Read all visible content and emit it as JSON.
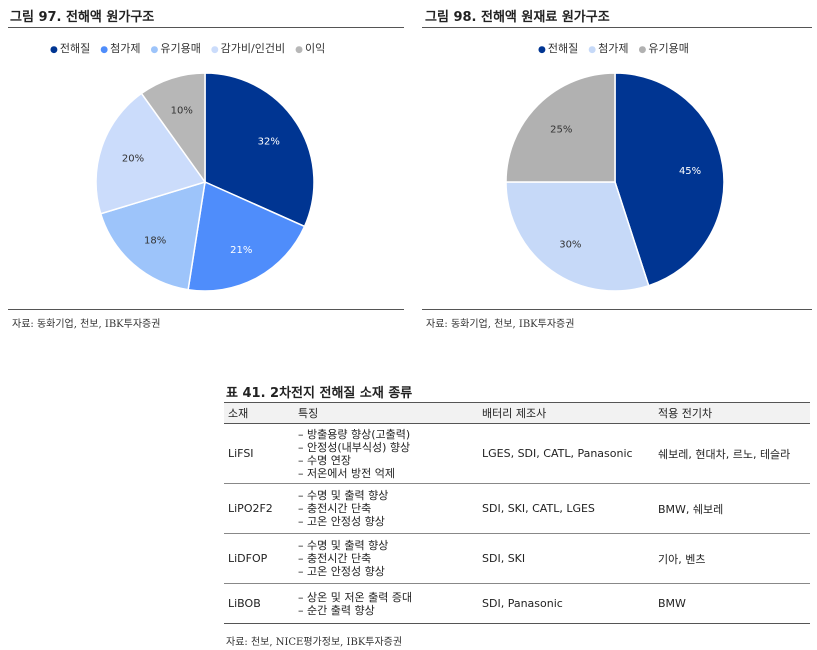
{
  "chart_data": [
    {
      "type": "pie",
      "title": "그림 97. 전해액 원가구조",
      "categories": [
        "전해질",
        "첨가제",
        "유기용매",
        "감가비/인건비",
        "이익"
      ],
      "values": [
        32,
        21,
        18,
        20,
        10
      ],
      "value_labels": [
        "32%",
        "21%",
        "18%",
        "20%",
        "10%"
      ],
      "colors": [
        "#003592",
        "#4f8dfb",
        "#9dc4fa",
        "#cbdcfb",
        "#b7b7b7"
      ],
      "legend_position": "top",
      "source": "자료: 동화기업, 천보, IBK투자증권"
    },
    {
      "type": "pie",
      "title": "그림 98. 전해액 원재료 원가구조",
      "categories": [
        "전해질",
        "첨가제",
        "유기용매"
      ],
      "values": [
        45,
        30,
        25
      ],
      "value_labels": [
        "45%",
        "30%",
        "25%"
      ],
      "colors": [
        "#003592",
        "#c6d9f8",
        "#b1b1b1"
      ],
      "legend_position": "top",
      "source": "자료: 동화기업, 천보, IBK투자증권"
    }
  ],
  "table": {
    "title": "표 41. 2차전지 전해질 소재 종류",
    "headers": [
      "소재",
      "특징",
      "배터리 제조사",
      "적용 전기차"
    ],
    "rows": [
      {
        "material": "LiFSI",
        "features": [
          "방출용량 향상(고출력)",
          "안정성(내부식성) 향상",
          "수명 연장",
          "저온에서 방전 억제"
        ],
        "makers": "LGES, SDI, CATL, Panasonic",
        "ev": "쉐보레, 현대차, 르노, 테슬라"
      },
      {
        "material": "LiPO2F2",
        "features": [
          "수명 및 출력 향상",
          "충전시간 단축",
          "고온 안정성 향상"
        ],
        "makers": "SDI, SKI, CATL, LGES",
        "ev": "BMW, 쉐보레"
      },
      {
        "material": "LiDFOP",
        "features": [
          "수명 및 출력 향상",
          "충전시간 단축",
          "고온 안정성 향상"
        ],
        "makers": "SDI, SKI",
        "ev": "기아, 벤츠"
      },
      {
        "material": "LiBOB",
        "features": [
          "상온 및 저온 출력 증대",
          "순간 출력 향상"
        ],
        "makers": "SDI, Panasonic",
        "ev": "BMW"
      }
    ],
    "source": "자료: 천보, NICE평가정보, IBK투자증권"
  }
}
